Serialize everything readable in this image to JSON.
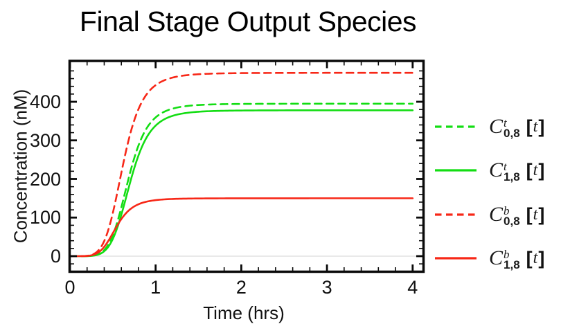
{
  "chart_data": {
    "type": "line",
    "title": "Final Stage Output Species",
    "xlabel": "Time (hrs)",
    "ylabel": "Concentration (nM)",
    "xlim": [
      0,
      4.13
    ],
    "ylim": [
      -41,
      506
    ],
    "xticks": [
      0,
      1,
      2,
      3,
      4
    ],
    "yticks": [
      0,
      100,
      200,
      300,
      400
    ],
    "x_minor_step": 0.2,
    "y_minor_step": 20,
    "grid": false,
    "legend_position": "right-outside",
    "frame_color": "#0a0a0a",
    "zero_line_color": "#e2e2e2",
    "background": "#ffffff",
    "x_samples_hr": [
      0,
      0.25,
      0.5,
      0.75,
      1,
      1.5,
      2,
      3,
      4
    ],
    "series": [
      {
        "name": "C_0,8^t [t]",
        "color": "#13dd13",
        "style": "dashed",
        "plateau_nM": 395,
        "half_rise_hr": 0.68,
        "hill_n": 6,
        "values_nM": [
          0,
          1,
          54,
          254,
          359,
          392,
          394,
          395,
          395
        ]
      },
      {
        "name": "C_1,8^t [t]",
        "color": "#13dd13",
        "style": "solid",
        "plateau_nM": 378,
        "half_rise_hr": 0.7,
        "hill_n": 6,
        "values_nM": [
          0,
          1,
          44,
          228,
          338,
          374,
          377,
          378,
          378
        ]
      },
      {
        "name": "C_0,8^b [t]",
        "color": "#f72717",
        "style": "dashed",
        "plateau_nM": 475,
        "half_rise_hr": 0.62,
        "hill_n": 5.5,
        "values_nM": [
          0,
          3,
          111,
          352,
          443,
          471,
          474,
          475,
          475
        ]
      },
      {
        "name": "C_1,8^b [t]",
        "color": "#f72717",
        "style": "solid",
        "plateau_nM": 150,
        "half_rise_hr": 0.54,
        "hill_n": 5.5,
        "values_nM": [
          0,
          2,
          59,
          129,
          145,
          150,
          150,
          150,
          150
        ]
      }
    ]
  },
  "legend": {
    "items": [
      {
        "symbol": "C",
        "sup": "t",
        "sub": "0,8",
        "open": "[",
        "arg": "t",
        "close": "]"
      },
      {
        "symbol": "C",
        "sup": "t",
        "sub": "1,8",
        "open": "[",
        "arg": "t",
        "close": "]"
      },
      {
        "symbol": "C",
        "sup": "b",
        "sub": "0,8",
        "open": "[",
        "arg": "t",
        "close": "]"
      },
      {
        "symbol": "C",
        "sup": "b",
        "sub": "1,8",
        "open": "[",
        "arg": "t",
        "close": "]"
      }
    ]
  }
}
